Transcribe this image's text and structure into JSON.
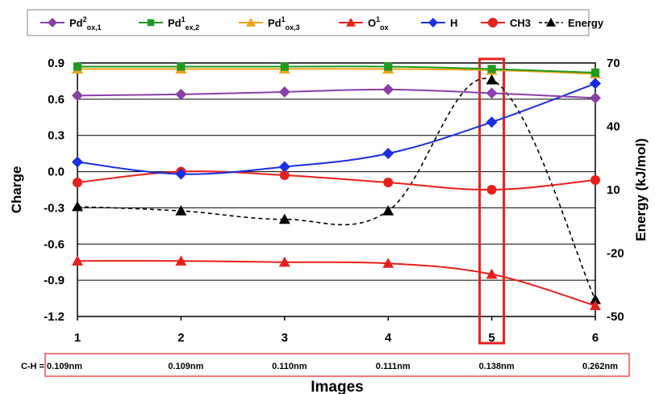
{
  "chart_data": {
    "type": "line",
    "x": [
      1,
      2,
      3,
      4,
      5,
      6
    ],
    "xlabel": "Images",
    "ylabel_left": "Charge",
    "ylabel_right": "Energy (kJ/mol)",
    "ylim_left": [
      -1.2,
      0.9
    ],
    "ylim_right": [
      -50,
      70
    ],
    "yticks_left": [
      "0.9",
      "0.6",
      "0.3",
      "0.0",
      "-0.3",
      "-0.6",
      "-0.9",
      "-1.2"
    ],
    "yticks_right": [
      "70",
      "40",
      "10",
      "-20",
      "-50"
    ],
    "xticks": [
      "1",
      "2",
      "3",
      "4",
      "5",
      "6"
    ],
    "grid": "horizontal",
    "legend_position": "top",
    "highlight_x": 5,
    "series": [
      {
        "name": "Pd2ox,1",
        "label_main": "Pd",
        "label_sup": "2",
        "label_sub": "ox,1",
        "color": "#8b3fa8",
        "marker": "diamond",
        "axis": "left",
        "values": [
          0.63,
          0.64,
          0.66,
          0.68,
          0.65,
          0.61
        ]
      },
      {
        "name": "Pd1ex,2",
        "label_main": "Pd",
        "label_sup": "1",
        "label_sub": "ex,2",
        "color": "#1f9a1f",
        "marker": "square",
        "axis": "left",
        "values": [
          0.87,
          0.87,
          0.87,
          0.87,
          0.85,
          0.82
        ]
      },
      {
        "name": "Pd1ox,3",
        "label_main": "Pd",
        "label_sup": "1",
        "label_sub": "ox,3",
        "color": "#f0a21a",
        "marker": "triangle",
        "axis": "left",
        "values": [
          0.85,
          0.85,
          0.85,
          0.85,
          0.84,
          0.81
        ]
      },
      {
        "name": "O1ox",
        "label_main": "O",
        "label_sup": "1",
        "label_sub": "ox",
        "color": "#e8201a",
        "marker": "triangle",
        "axis": "left",
        "values": [
          -0.74,
          -0.74,
          -0.75,
          -0.76,
          -0.85,
          -1.11
        ]
      },
      {
        "name": "H",
        "label_main": "H",
        "label_sup": "",
        "label_sub": "",
        "color": "#1a2fe0",
        "marker": "diamond",
        "axis": "left",
        "values": [
          0.08,
          -0.02,
          0.04,
          0.15,
          0.41,
          0.73
        ]
      },
      {
        "name": "CH3",
        "label_main": "CH3",
        "label_sup": "",
        "label_sub": "",
        "color": "#e8201a",
        "marker": "circle",
        "axis": "left",
        "values": [
          -0.09,
          0.0,
          -0.03,
          -0.09,
          -0.15,
          -0.07
        ]
      },
      {
        "name": "Energy",
        "label_main": "Energy",
        "label_sup": "",
        "label_sub": "",
        "color": "#000000",
        "marker": "triangle",
        "dashed": true,
        "axis": "right",
        "values": [
          2,
          0,
          -4,
          0,
          62,
          -42
        ]
      }
    ],
    "ch_distances": [
      "C-H = 0.109nm",
      "0.109nm",
      "0.110nm",
      "0.111nm",
      "0.138nm",
      "0.262nm"
    ]
  }
}
